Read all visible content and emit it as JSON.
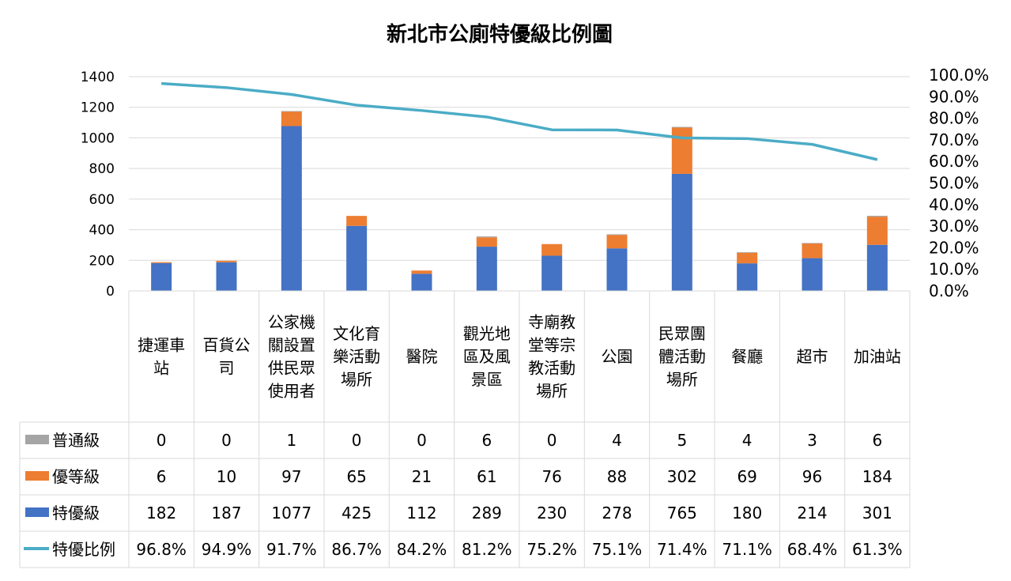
{
  "chart_data": {
    "type": "bar",
    "stacked": true,
    "title": "新北市公廁特優級比例圖",
    "categories": [
      [
        "捷運車",
        "站"
      ],
      [
        "百貨公",
        "司"
      ],
      [
        "公家機",
        "關設置",
        "供民眾",
        "使用者"
      ],
      [
        "文化育",
        "樂活動",
        "場所"
      ],
      [
        "醫院"
      ],
      [
        "觀光地",
        "區及風",
        "景區"
      ],
      [
        "寺廟教",
        "堂等宗",
        "教活動",
        "場所"
      ],
      [
        "公園"
      ],
      [
        "民眾團",
        "體活動",
        "場所"
      ],
      [
        "餐廳"
      ],
      [
        "超市"
      ],
      [
        "加油站"
      ]
    ],
    "series": [
      {
        "name": "普通級",
        "color": "#a5a5a5",
        "values": [
          0,
          0,
          1,
          0,
          0,
          6,
          0,
          4,
          5,
          4,
          3,
          6
        ]
      },
      {
        "name": "優等級",
        "color": "#ed7d31",
        "values": [
          6,
          10,
          97,
          65,
          21,
          61,
          76,
          88,
          302,
          69,
          96,
          184
        ]
      },
      {
        "name": "特優級",
        "color": "#4472c4",
        "values": [
          182,
          187,
          1077,
          425,
          112,
          289,
          230,
          278,
          765,
          180,
          214,
          301
        ]
      }
    ],
    "line_series": {
      "name": "特優比例",
      "color": "#4bacc6",
      "values": [
        96.8,
        94.9,
        91.7,
        86.7,
        84.2,
        81.2,
        75.2,
        75.1,
        71.4,
        71.1,
        68.4,
        61.3
      ],
      "labels": [
        "96.8%",
        "94.9%",
        "91.7%",
        "86.7%",
        "84.2%",
        "81.2%",
        "75.2%",
        "75.1%",
        "71.4%",
        "71.1%",
        "68.4%",
        "61.3%"
      ]
    },
    "ylim": [
      0,
      1400
    ],
    "yticks": [
      "0",
      "200",
      "400",
      "600",
      "800",
      "1000",
      "1200",
      "1400"
    ],
    "y2lim": [
      0,
      100
    ],
    "y2ticks": [
      "0.0%",
      "10.0%",
      "20.0%",
      "30.0%",
      "40.0%",
      "50.0%",
      "60.0%",
      "70.0%",
      "80.0%",
      "90.0%",
      "100.0%"
    ],
    "grid": true,
    "data_table": true
  }
}
